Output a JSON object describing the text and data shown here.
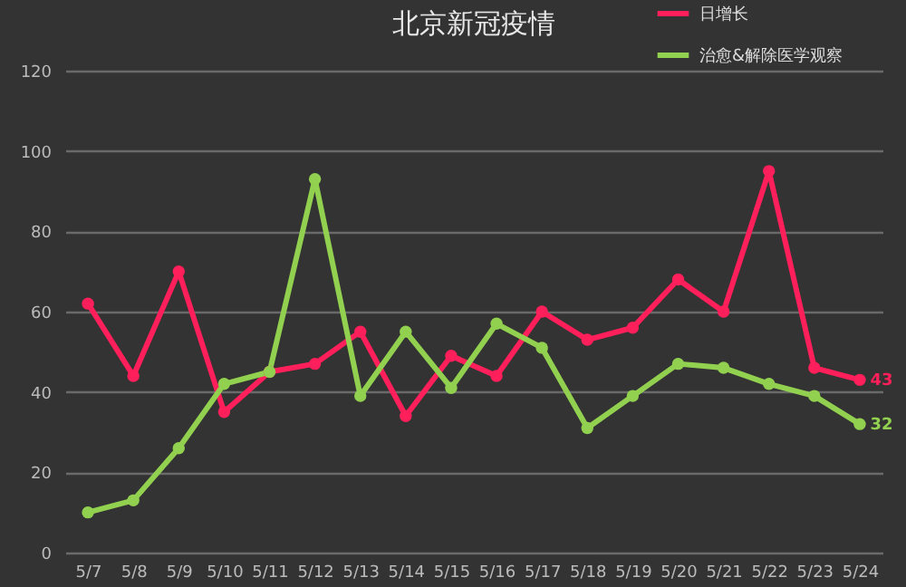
{
  "chart_data": {
    "type": "line",
    "title": "北京新冠疫情",
    "categories": [
      "5/7",
      "5/8",
      "5/9",
      "5/10",
      "5/11",
      "5/12",
      "5/13",
      "5/14",
      "5/15",
      "5/16",
      "5/17",
      "5/18",
      "5/19",
      "5/20",
      "5/21",
      "5/22",
      "5/23",
      "5/24"
    ],
    "series": [
      {
        "name": "日增长",
        "color": "#ff1f5a",
        "values": [
          62,
          44,
          70,
          35,
          45,
          47,
          55,
          34,
          49,
          44,
          60,
          53,
          56,
          68,
          60,
          95,
          46,
          43
        ],
        "value_labels": [
          null,
          null,
          null,
          null,
          null,
          null,
          null,
          null,
          null,
          null,
          null,
          null,
          null,
          null,
          null,
          null,
          null,
          "43"
        ]
      },
      {
        "name": "治愈&解除医学观察",
        "color": "#92d050",
        "values": [
          10,
          13,
          26,
          42,
          45,
          93,
          39,
          55,
          41,
          57,
          51,
          31,
          39,
          47,
          46,
          42,
          39,
          32
        ],
        "value_labels": [
          null,
          null,
          null,
          null,
          null,
          null,
          null,
          null,
          null,
          null,
          null,
          null,
          null,
          null,
          null,
          null,
          null,
          "32"
        ]
      }
    ],
    "ylim": [
      0,
      120
    ],
    "yticks": [
      0,
      20,
      40,
      60,
      80,
      100,
      120
    ],
    "grid": "y",
    "legend": "top right",
    "marker": "circle",
    "line_style": "solid"
  }
}
